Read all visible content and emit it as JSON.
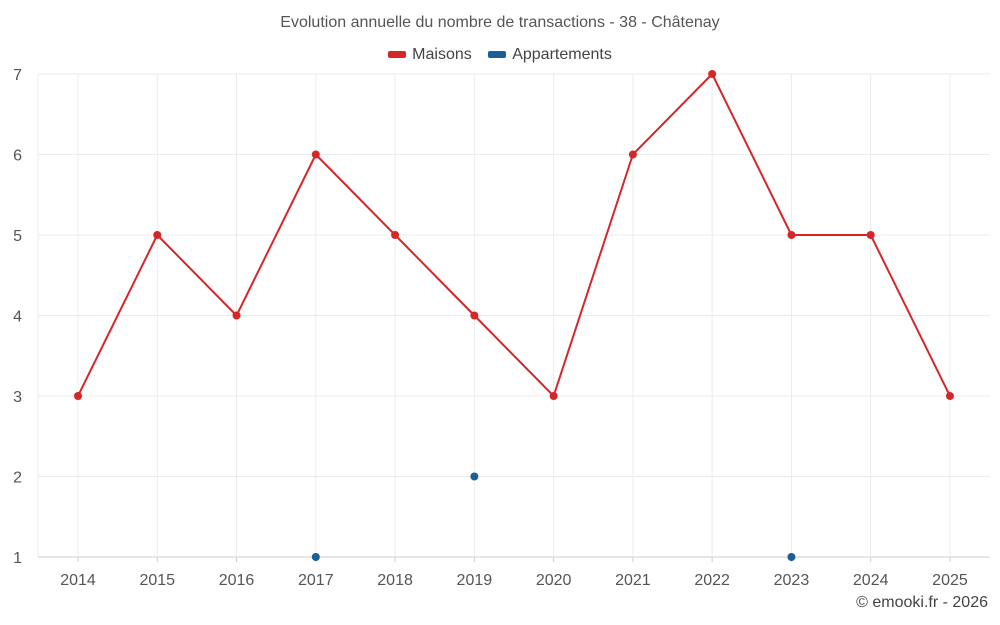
{
  "chart_data": {
    "type": "line",
    "title": "Evolution annuelle du nombre de transactions - 38 - Châtenay",
    "x": [
      "2014",
      "2015",
      "2016",
      "2017",
      "2018",
      "2019",
      "2020",
      "2021",
      "2022",
      "2023",
      "2024",
      "2025"
    ],
    "ylim": [
      1,
      7
    ],
    "yticks": [
      1,
      2,
      3,
      4,
      5,
      6,
      7
    ],
    "grid": true,
    "legend_position": "top-center",
    "series": [
      {
        "name": "Maisons",
        "color": "#d62728",
        "values": [
          3,
          5,
          4,
          6,
          5,
          4,
          3,
          6,
          7,
          5,
          5,
          3
        ]
      },
      {
        "name": "Appartements",
        "color": "#1a5f96",
        "values": [
          null,
          null,
          null,
          1,
          null,
          2,
          null,
          null,
          null,
          1,
          null,
          null
        ]
      }
    ]
  },
  "credit": "© emooki.fr - 2026"
}
